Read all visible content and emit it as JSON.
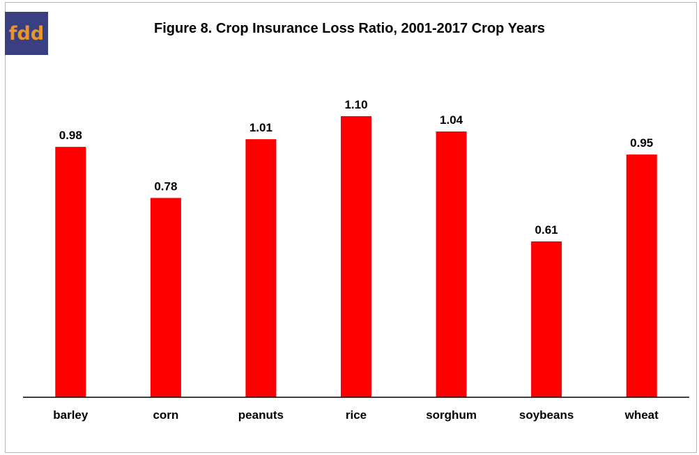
{
  "logo": {
    "text": "fdd",
    "bg_color": "#3a3f82",
    "text_color": "#e8962c"
  },
  "chart_data": {
    "type": "bar",
    "title": "Figure 8.  Crop Insurance Loss Ratio, 2001-2017 Crop Years",
    "categories": [
      "barley",
      "corn",
      "peanuts",
      "rice",
      "sorghum",
      "soybeans",
      "wheat"
    ],
    "values": [
      0.98,
      0.78,
      1.01,
      1.1,
      1.04,
      0.61,
      0.95
    ],
    "data_labels": [
      "0.98",
      "0.78",
      "1.01",
      "1.10",
      "1.04",
      "0.61",
      "0.95"
    ],
    "bar_color": "#ff0000",
    "ylim": [
      0,
      1.1
    ],
    "grid": false,
    "legend": "none"
  }
}
